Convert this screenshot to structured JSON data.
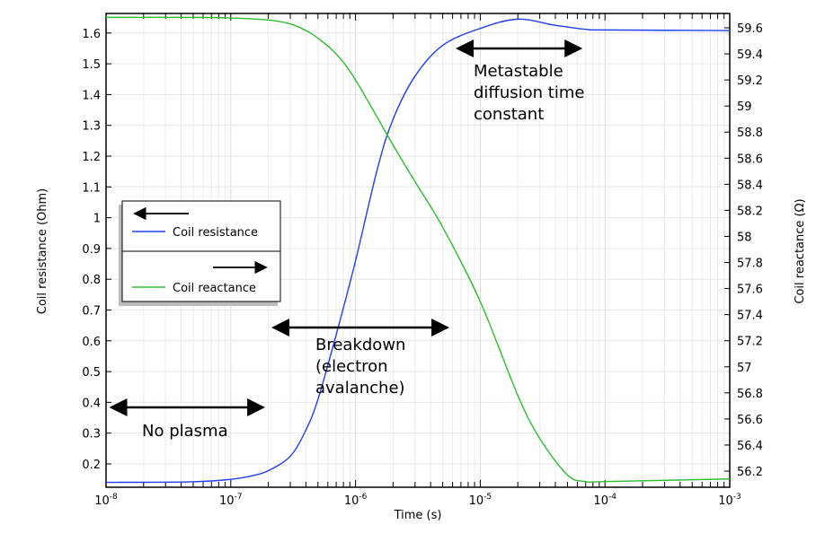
{
  "chart_data": {
    "type": "line",
    "xlabel": "Time (s)",
    "ylabel": "Coil resistance (Ohm)",
    "y2label": "Coil reactance (Ω)",
    "xscale": "log",
    "xlim": [
      1e-08,
      0.001
    ],
    "ylim": [
      0.11,
      1.66
    ],
    "y2lim": [
      56.08,
      59.7
    ],
    "grid": true,
    "legend": "left-middle",
    "x_ticks": [
      {
        "b": "10",
        "e": "-8"
      },
      {
        "b": "10",
        "e": "-7"
      },
      {
        "b": "10",
        "e": "-6"
      },
      {
        "b": "10",
        "e": "-5"
      },
      {
        "b": "10",
        "e": "-4"
      },
      {
        "b": "10",
        "e": "-3"
      }
    ],
    "y_ticks": [
      "0.2",
      "0.3",
      "0.4",
      "0.5",
      "0.6",
      "0.7",
      "0.8",
      "0.9",
      "1",
      "1.1",
      "1.2",
      "1.3",
      "1.4",
      "1.5",
      "1.6"
    ],
    "y2_ticks": [
      "56.2",
      "56.4",
      "56.6",
      "56.8",
      "57",
      "57.2",
      "57.4",
      "57.6",
      "57.8",
      "58",
      "58.2",
      "58.4",
      "58.6",
      "58.8",
      "59",
      "59.2",
      "59.4",
      "59.6"
    ],
    "series": [
      {
        "name": "Coil resistance",
        "axis": "left",
        "color": "#1f3ff0",
        "x": [
          1e-08,
          5e-08,
          1e-07,
          1.5e-07,
          2e-07,
          3e-07,
          4e-07,
          5e-07,
          7e-07,
          1e-06,
          1.5e-06,
          2e-06,
          3e-06,
          5e-06,
          1e-05,
          2e-05,
          4e-05,
          7e-05,
          0.0001,
          0.001
        ],
        "y": [
          0.14,
          0.142,
          0.15,
          0.162,
          0.178,
          0.225,
          0.31,
          0.41,
          0.62,
          0.86,
          1.16,
          1.32,
          1.46,
          1.56,
          1.615,
          1.645,
          1.625,
          1.612,
          1.61,
          1.608
        ]
      },
      {
        "name": "Coil reactance",
        "axis": "right",
        "color": "#2ebd2e",
        "x": [
          1e-08,
          5e-08,
          1e-07,
          2e-07,
          3e-07,
          4e-07,
          5e-07,
          7e-07,
          1e-06,
          2e-06,
          3e-06,
          5e-06,
          1e-05,
          2e-05,
          3e-05,
          5e-05,
          7e-05,
          0.0001,
          0.001
        ],
        "y": [
          59.68,
          59.68,
          59.675,
          59.66,
          59.63,
          59.58,
          59.52,
          59.4,
          59.2,
          58.7,
          58.42,
          58.07,
          57.5,
          56.78,
          56.45,
          56.17,
          56.12,
          56.12,
          56.14
        ]
      }
    ],
    "annotations": [
      {
        "lines": [
          "No plasma"
        ],
        "range": [
          1e-08,
          2e-07
        ]
      },
      {
        "lines": [
          "Breakdown",
          "(electron",
          "avalanche)"
        ],
        "range": [
          2e-07,
          6e-06
        ]
      },
      {
        "lines": [
          "Metastable",
          "diffusion time",
          "constant"
        ],
        "range": [
          6e-06,
          7e-05
        ]
      }
    ]
  }
}
